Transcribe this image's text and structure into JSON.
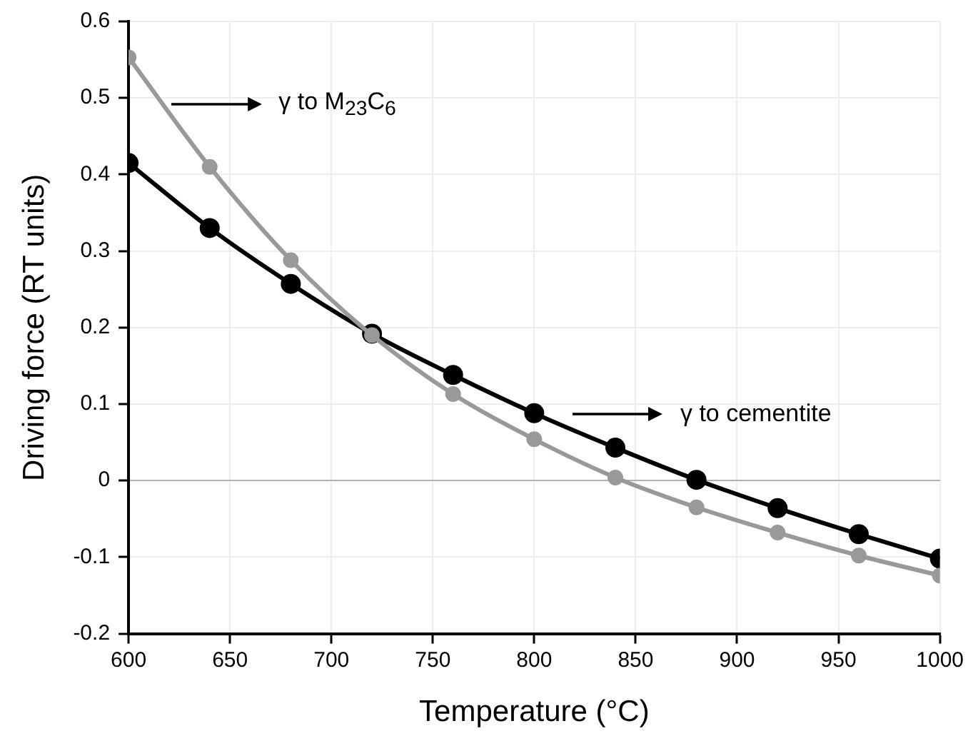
{
  "chart_data": {
    "type": "line",
    "xlabel": "Temperature (°C)",
    "ylabel": "Driving force (RT units)",
    "x": [
      600,
      640,
      680,
      720,
      760,
      800,
      840,
      880,
      920,
      960,
      1000
    ],
    "series": [
      {
        "color": "#999999",
        "values": [
          0.553,
          0.41,
          0.288,
          0.19,
          0.113,
          0.054,
          0.004,
          -0.035,
          -0.068,
          -0.098,
          -0.124
        ]
      },
      {
        "color": "#000000",
        "values": [
          0.415,
          0.33,
          0.257,
          0.192,
          0.138,
          0.088,
          0.043,
          0.001,
          -0.036,
          -0.07,
          -0.102
        ]
      }
    ],
    "annotations": [
      "γ to M$_{23}$C$_{6}$",
      "γ to cementite"
    ],
    "xlim": [
      600,
      1000
    ],
    "xticks": [
      600,
      650,
      700,
      750,
      800,
      850,
      900,
      950,
      1000
    ],
    "ylim": [
      -0.2,
      0.6
    ],
    "yticks": [
      -0.2,
      -0.1,
      0,
      0.1,
      0.2,
      0.3,
      0.4,
      0.5,
      0.6
    ],
    "grid": true,
    "marker": "circle",
    "line_style": "solid"
  }
}
